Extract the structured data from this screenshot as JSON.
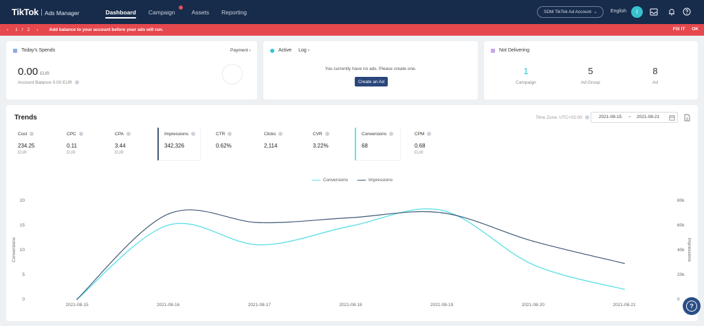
{
  "nav": {
    "logo_main": "TikTok",
    "logo_sub": "Ads Manager",
    "tabs": [
      {
        "label": "Dashboard",
        "active": true
      },
      {
        "label": "Campaign",
        "badge": true
      },
      {
        "label": "Assets"
      },
      {
        "label": "Reporting"
      }
    ],
    "account_select": "SDM TikTok Ad Account",
    "language": "English",
    "avatar_initial": "I"
  },
  "alert": {
    "page_current": "1",
    "page_sep": "/",
    "page_total": "2",
    "message": "Add balance to your account before your ads will run.",
    "fix_label": "FIX IT",
    "ok_label": "OK",
    "color": "#e5484d"
  },
  "spends": {
    "title": "Today's Spends",
    "value": "0.00",
    "unit": "EUR",
    "balance": "Account Balance 0.00 EUR",
    "payment_label": "Payment",
    "payment_arrow": "›"
  },
  "active": {
    "title": "Active",
    "log_label": "Log",
    "log_arrow": "›",
    "empty_text": "You currently have no ads. Please create one.",
    "create_button": "Create an Ad"
  },
  "not_delivering": {
    "title": "Not Delivering",
    "items": [
      {
        "value": "1",
        "label": "Campaign"
      },
      {
        "value": "5",
        "label": "Ad Group"
      },
      {
        "value": "8",
        "label": "Ad"
      }
    ]
  },
  "trends": {
    "title": "Trends",
    "timezone": "Time Zone: UTC+02:00",
    "date_from": "2021-08-15",
    "date_sep": "~",
    "date_to": "2021-08-21",
    "metrics": [
      {
        "label": "Cost",
        "value": "234.25",
        "unit": "EUR"
      },
      {
        "label": "CPC",
        "value": "0.11",
        "unit": "EUR"
      },
      {
        "label": "CPA",
        "value": "3.44",
        "unit": "EUR"
      },
      {
        "label": "Impressions",
        "value": "342,326",
        "unit": ""
      },
      {
        "label": "CTR",
        "value": "0.62%",
        "unit": ""
      },
      {
        "label": "Clicks",
        "value": "2,114",
        "unit": ""
      },
      {
        "label": "CVR",
        "value": "3.22%",
        "unit": ""
      },
      {
        "label": "Conversions",
        "value": "68",
        "unit": ""
      },
      {
        "label": "CPM",
        "value": "0.68",
        "unit": "EUR"
      }
    ]
  },
  "colors": {
    "nav": "#172b4a",
    "conversions": "#5ee0e6",
    "impressions": "#3e5774",
    "accent_button": "#2a467a"
  },
  "chart_data": {
    "type": "line",
    "x": [
      "2021-08-15",
      "2021-08-16",
      "2021-08-17",
      "2021-08-18",
      "2021-08-19",
      "2021-08-20",
      "2021-08-21"
    ],
    "series": [
      {
        "name": "Conversions",
        "axis": "left",
        "values": [
          0,
          15,
          11,
          14.8,
          18,
          7,
          2
        ]
      },
      {
        "name": "Impressions",
        "axis": "right",
        "values": [
          0,
          69000,
          62000,
          66000,
          70000,
          47000,
          29000
        ]
      }
    ],
    "ylabel": "Conversions",
    "y2label": "Impressions",
    "ylim": [
      0,
      20
    ],
    "y2lim": [
      0,
      80000
    ],
    "yticks": [
      "0",
      "5",
      "10",
      "15",
      "20"
    ],
    "y2ticks": [
      "0",
      "20k",
      "40k",
      "60k",
      "80k"
    ],
    "legend": "top-center",
    "grid": false
  }
}
